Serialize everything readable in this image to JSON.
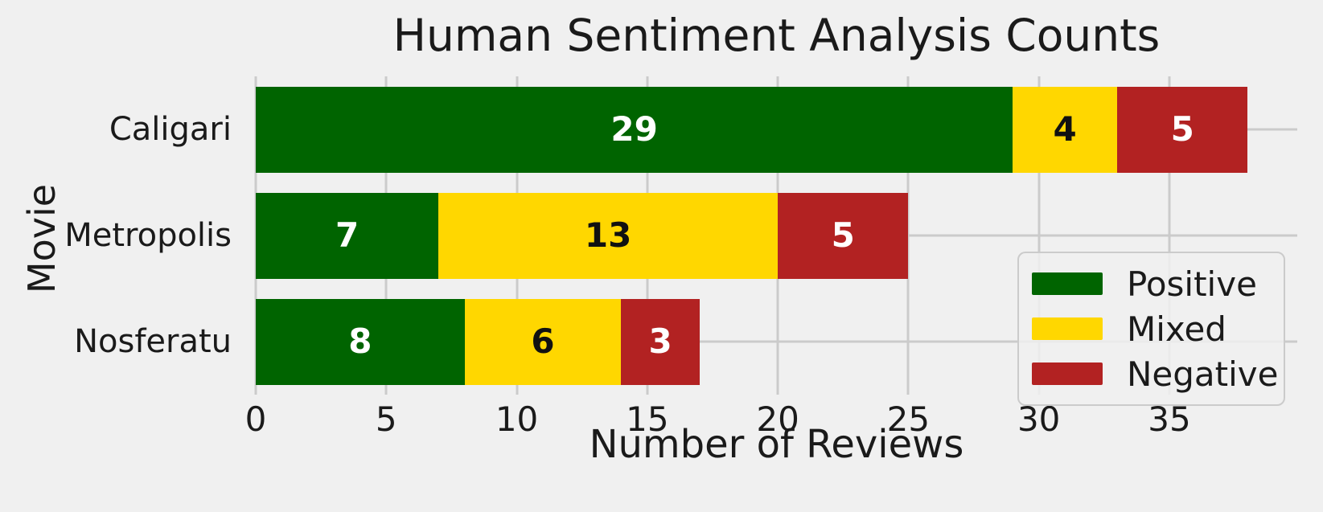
{
  "chart_data": {
    "type": "bar",
    "orientation": "horizontal",
    "stacked": true,
    "title": "Human Sentiment Analysis Counts",
    "xlabel": "Number of Reviews",
    "ylabel": "Movie",
    "categories": [
      "Caligari",
      "Metropolis",
      "Nosferatu"
    ],
    "series": [
      {
        "name": "Positive",
        "color": "#006400",
        "label_color": "#ffffff",
        "values": [
          29,
          7,
          8
        ]
      },
      {
        "name": "Mixed",
        "color": "#FFD700",
        "label_color": "#111111",
        "values": [
          4,
          13,
          6
        ]
      },
      {
        "name": "Negative",
        "color": "#B22222",
        "label_color": "#ffffff",
        "values": [
          5,
          5,
          3
        ]
      }
    ],
    "totals": [
      38,
      25,
      17
    ],
    "xticks": [
      0,
      5,
      10,
      15,
      20,
      25,
      30,
      35
    ],
    "xlim": [
      0,
      39.9
    ],
    "grid": true,
    "legend_position": "lower right",
    "background_color": "#f0f0f0",
    "grid_color": "#cbcbcb"
  }
}
